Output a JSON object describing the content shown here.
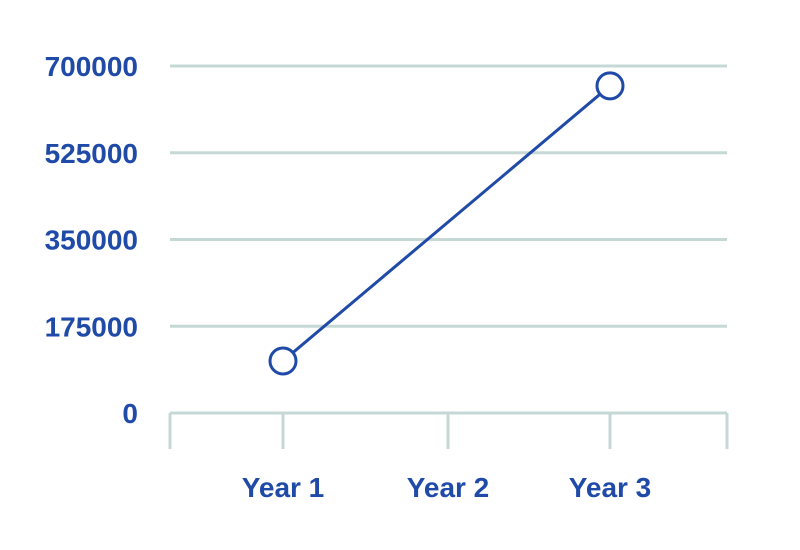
{
  "chart_data": {
    "type": "line",
    "categories": [
      "Year 1",
      "Year 2",
      "Year 3"
    ],
    "series": [
      {
        "values": [
          105000,
          null,
          660000
        ]
      }
    ],
    "yticks": [
      0,
      175000,
      350000,
      525000,
      700000
    ],
    "ytick_labels": [
      "0",
      "175000",
      "350000",
      "525000",
      "700000"
    ],
    "ylim": [
      0,
      700000
    ],
    "grid": true,
    "legend": "none",
    "title": "",
    "xlabel": "",
    "ylabel": ""
  },
  "colors": {
    "line": "#1f4aa8",
    "text": "#1f4aa8",
    "grid": "#c6d8d6",
    "marker_fill": "#ffffff",
    "background": "#ffffff"
  }
}
